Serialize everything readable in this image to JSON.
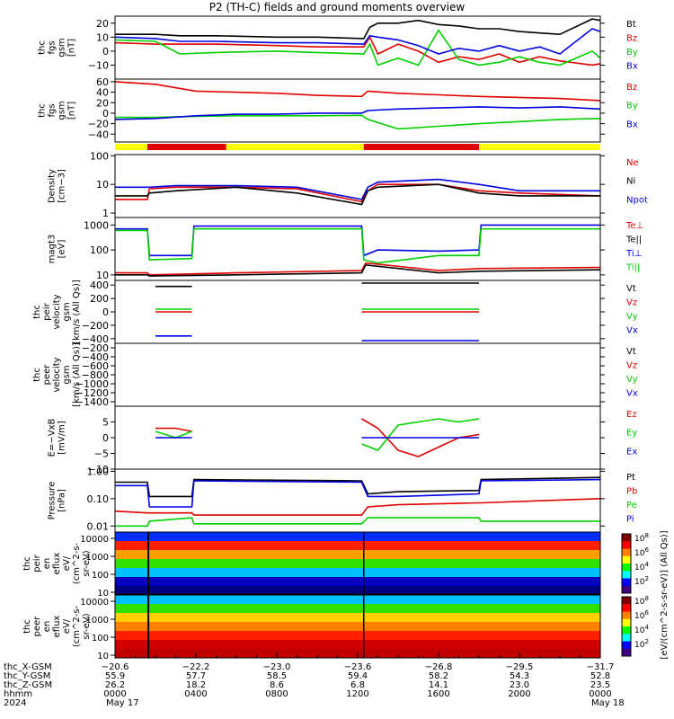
{
  "title": "P2 (TH-C) fields and ground moments overview",
  "colors": {
    "black": "#000000",
    "red": "#e00000",
    "green": "#00d000",
    "blue": "#0000e0",
    "yellow": "#ffff00",
    "bar_red": "#e00000"
  },
  "chart_data": [
    {
      "type": "line",
      "ylabel": [
        "thc",
        "fgs",
        "gsm",
        "[nT]"
      ],
      "yticks": [
        "20",
        "10",
        "0",
        "−10"
      ],
      "ylim": [
        -20,
        25
      ],
      "legend": [
        {
          "name": "Bt",
          "color": "#000000"
        },
        {
          "name": "Bz",
          "color": "#e00000"
        },
        {
          "name": "By",
          "color": "#00d000"
        },
        {
          "name": "Bx",
          "color": "#0000e0"
        }
      ],
      "series": [
        {
          "name": "Bt",
          "x": [
            0,
            2,
            3.2,
            5,
            8,
            10,
            12.3,
            12.6,
            13,
            14,
            15,
            16,
            17,
            18,
            19,
            20,
            21,
            22,
            23.6,
            24
          ],
          "y": [
            12,
            12,
            11,
            11,
            10,
            10,
            9,
            17,
            20,
            20,
            22,
            19,
            18,
            16,
            16,
            14,
            13,
            12,
            23,
            22
          ]
        },
        {
          "name": "Bz",
          "x": [
            0,
            2,
            3.2,
            5,
            8,
            10,
            12.3,
            12.6,
            13,
            14,
            15,
            16,
            17,
            18,
            19,
            20,
            21,
            22,
            23.6,
            24
          ],
          "y": [
            6,
            5,
            5,
            5,
            4,
            3,
            3,
            10,
            -2,
            5,
            0,
            -8,
            -4,
            -6,
            -2,
            -8,
            -4,
            -7,
            -10,
            -9
          ]
        },
        {
          "name": "By",
          "x": [
            0,
            2,
            3.2,
            5,
            8,
            10,
            12.3,
            12.6,
            13,
            14,
            15,
            16,
            17,
            18,
            19,
            20,
            21,
            22,
            23.6,
            24
          ],
          "y": [
            8,
            7,
            -2,
            -1,
            0,
            -1,
            -2,
            5,
            -10,
            -5,
            -10,
            15,
            -6,
            -10,
            -8,
            -4,
            -8,
            -10,
            0,
            -5
          ]
        },
        {
          "name": "Bx",
          "x": [
            0,
            2,
            3.2,
            5,
            8,
            10,
            12.3,
            12.6,
            13,
            14,
            15,
            16,
            17,
            18,
            19,
            20,
            21,
            22,
            23.6,
            24
          ],
          "y": [
            10,
            9,
            7,
            7,
            6,
            6,
            5,
            11,
            10,
            8,
            4,
            -2,
            2,
            0,
            4,
            0,
            3,
            -2,
            16,
            14
          ]
        }
      ]
    },
    {
      "type": "line",
      "ylabel": [
        "thc",
        "fgs",
        "gsm",
        "[nT]"
      ],
      "yticks": [
        "60",
        "40",
        "20",
        "0",
        "−20",
        "−40"
      ],
      "ylim": [
        -55,
        65
      ],
      "legend": [
        {
          "name": "Bz",
          "color": "#e00000"
        },
        {
          "name": "By",
          "color": "#00d000"
        },
        {
          "name": "Bx",
          "color": "#0000e0"
        }
      ],
      "series": [
        {
          "name": "Bz",
          "x": [
            0,
            2,
            4,
            6,
            8,
            10,
            12.2,
            12.5,
            14,
            16,
            18,
            20,
            22,
            24
          ],
          "y": [
            60,
            55,
            42,
            40,
            38,
            34,
            32,
            42,
            38,
            35,
            32,
            30,
            28,
            24
          ]
        },
        {
          "name": "By",
          "x": [
            0,
            2,
            4,
            6,
            8,
            10,
            12.2,
            12.5,
            14,
            16,
            18,
            20,
            22,
            24
          ],
          "y": [
            -8,
            -8,
            -6,
            -5,
            -5,
            -5,
            -4,
            -12,
            -30,
            -25,
            -20,
            -16,
            -12,
            -10
          ]
        },
        {
          "name": "Bx",
          "x": [
            0,
            2,
            4,
            6,
            8,
            10,
            12.2,
            12.5,
            14,
            16,
            18,
            20,
            22,
            24
          ],
          "y": [
            -12,
            -10,
            -5,
            -2,
            -2,
            0,
            0,
            5,
            8,
            10,
            12,
            10,
            12,
            8
          ]
        }
      ]
    },
    {
      "type": "line",
      "ylabel": [
        "Density",
        "[cm−3]"
      ],
      "yscale": "log",
      "yticks": [
        "100",
        "10",
        "1"
      ],
      "ylim": [
        0.7,
        110
      ],
      "legend": [
        {
          "name": "Ne",
          "color": "#e00000"
        },
        {
          "name": "Ni",
          "color": "#000000"
        },
        {
          "name": "Npot",
          "color": "#0000e0"
        }
      ],
      "series": [
        {
          "name": "Ne",
          "x": [
            0,
            1.6,
            1.7,
            3,
            6,
            9,
            12.2,
            12.5,
            13,
            16,
            18,
            20,
            24
          ],
          "y": [
            3,
            3,
            7,
            8,
            8,
            7,
            2.5,
            6,
            10,
            10,
            6,
            5,
            4
          ]
        },
        {
          "name": "Ni",
          "x": [
            0,
            1.6,
            1.7,
            3,
            6,
            9,
            12.2,
            12.5,
            13,
            16,
            18,
            20,
            24
          ],
          "y": [
            4,
            4,
            5,
            6,
            8,
            5,
            2,
            6,
            8,
            10,
            5,
            4,
            4
          ]
        },
        {
          "name": "Npot",
          "x": [
            0,
            1.6,
            1.7,
            3,
            6,
            9,
            12.2,
            12.5,
            13,
            16,
            18,
            20,
            24
          ],
          "y": [
            8,
            8,
            8,
            9,
            9,
            8,
            3,
            8,
            12,
            15,
            10,
            6,
            6
          ]
        }
      ]
    },
    {
      "type": "line",
      "ylabel": [
        "magt3",
        "[eV]"
      ],
      "yscale": "log",
      "yticks": [
        "1000",
        "100",
        "10"
      ],
      "ylim": [
        6,
        2000
      ],
      "legend": [
        {
          "name": "Te⊥",
          "color": "#e00000"
        },
        {
          "name": "Te||",
          "color": "#000000"
        },
        {
          "name": "Ti⊥",
          "color": "#0000e0"
        },
        {
          "name": "Ti||",
          "color": "#00d000"
        }
      ],
      "series": [
        {
          "name": "Ti⊥",
          "x": [
            0,
            1.6,
            1.7,
            3.8,
            3.9,
            12.2,
            12.3,
            13,
            16,
            18,
            18.1,
            24
          ],
          "y": [
            700,
            700,
            60,
            60,
            900,
            900,
            60,
            100,
            90,
            100,
            1000,
            1000
          ]
        },
        {
          "name": "Ti||",
          "x": [
            0,
            1.6,
            1.7,
            3.8,
            3.9,
            12.2,
            12.3,
            13,
            16,
            18,
            18.1,
            24
          ],
          "y": [
            600,
            600,
            40,
            45,
            700,
            700,
            40,
            30,
            60,
            60,
            700,
            700
          ]
        },
        {
          "name": "Te⊥",
          "x": [
            0,
            1.6,
            1.7,
            6,
            12.2,
            12.4,
            16,
            18,
            24
          ],
          "y": [
            12,
            12,
            10,
            12,
            15,
            30,
            15,
            18,
            20
          ]
        },
        {
          "name": "Te||",
          "x": [
            0,
            1.6,
            1.7,
            6,
            12.2,
            12.4,
            16,
            18,
            24
          ],
          "y": [
            10,
            10,
            9,
            10,
            12,
            25,
            12,
            14,
            16
          ]
        }
      ]
    },
    {
      "type": "line",
      "ylabel": [
        "thc",
        "peir",
        "velocity",
        "gsm",
        "[km/s (All Qs)]"
      ],
      "yticks": [
        "400",
        "200",
        "0",
        "−200",
        "−400"
      ],
      "ylim": [
        -470,
        470
      ],
      "legend": [
        {
          "name": "Vt",
          "color": "#000000"
        },
        {
          "name": "Vz",
          "color": "#e00000"
        },
        {
          "name": "Vy",
          "color": "#00d000"
        },
        {
          "name": "Vx",
          "color": "#0000e0"
        }
      ],
      "series": [
        {
          "name": "Vt",
          "x": [
            2,
            3.8
          ],
          "y": [
            380,
            380
          ],
          "x2": [
            12.2,
            18
          ],
          "y2": [
            430,
            430
          ]
        },
        {
          "name": "Vz",
          "x": [
            2,
            3.8
          ],
          "y": [
            0,
            0
          ],
          "x2": [
            12.2,
            18
          ],
          "y2": [
            0,
            0
          ]
        },
        {
          "name": "Vy",
          "x": [
            2,
            3.8
          ],
          "y": [
            40,
            40
          ],
          "x2": [
            12.2,
            18
          ],
          "y2": [
            40,
            40
          ]
        },
        {
          "name": "Vx",
          "x": [
            2,
            3.8
          ],
          "y": [
            -360,
            -360
          ],
          "x2": [
            12.2,
            18
          ],
          "y2": [
            -430,
            -430
          ]
        }
      ]
    },
    {
      "type": "line",
      "ylabel": [
        "thc",
        "peer",
        "velocity",
        "gsm",
        "[km/s (All Qs)]"
      ],
      "yticks": [
        "−200",
        "−400",
        "−600",
        "−800",
        "−1000",
        "−1200",
        "−1400"
      ],
      "ylim": [
        -1500,
        -100
      ],
      "legend": [
        {
          "name": "Vt",
          "color": "#000000"
        },
        {
          "name": "Vz",
          "color": "#e00000"
        },
        {
          "name": "Vy",
          "color": "#00d000"
        },
        {
          "name": "Vx",
          "color": "#0000e0"
        }
      ],
      "series": []
    },
    {
      "type": "line",
      "ylabel": [
        "E=−VxB",
        "[mV/m]"
      ],
      "yticks": [
        "5",
        "0",
        "−5",
        "−10"
      ],
      "ylim": [
        -10,
        10
      ],
      "legend": [
        {
          "name": "Ez",
          "color": "#e00000"
        },
        {
          "name": "Ey",
          "color": "#00d000"
        },
        {
          "name": "Ex",
          "color": "#0000e0"
        }
      ],
      "series": [
        {
          "name": "Ez",
          "x": [
            2,
            3,
            3.8
          ],
          "y": [
            3,
            3,
            2
          ],
          "x2": [
            12.2,
            13,
            14,
            15,
            16,
            17,
            18
          ],
          "y2": [
            6,
            3,
            -4,
            -6,
            -3,
            0,
            1
          ]
        },
        {
          "name": "Ey",
          "x": [
            2,
            3,
            3.8
          ],
          "y": [
            2,
            0,
            2
          ],
          "x2": [
            12.2,
            13,
            14,
            15,
            16,
            17,
            18
          ],
          "y2": [
            -2,
            -4,
            4,
            5,
            6,
            5,
            6
          ]
        },
        {
          "name": "Ex",
          "x": [
            2,
            3,
            3.8
          ],
          "y": [
            0,
            0,
            0
          ],
          "x2": [
            12.2,
            13,
            14,
            15,
            16,
            17,
            18
          ],
          "y2": [
            0,
            0,
            0,
            0,
            0,
            0,
            0
          ]
        }
      ]
    },
    {
      "type": "line",
      "ylabel": [
        "Pressure",
        "[nPa]"
      ],
      "yscale": "log",
      "yticks": [
        "1.00",
        "0.10",
        "0.01"
      ],
      "ylim": [
        0.006,
        1.2
      ],
      "legend": [
        {
          "name": "Pt",
          "color": "#000000"
        },
        {
          "name": "Pb",
          "color": "#e00000"
        },
        {
          "name": "Pe",
          "color": "#00d000"
        },
        {
          "name": "Pi",
          "color": "#0000e0"
        }
      ],
      "series": [
        {
          "name": "Pt",
          "x": [
            0,
            1.6,
            1.7,
            3.8,
            3.9,
            12.2,
            12.5,
            14,
            18,
            18.1,
            24
          ],
          "y": [
            0.4,
            0.4,
            0.12,
            0.12,
            0.5,
            0.45,
            0.15,
            0.18,
            0.2,
            0.5,
            0.6
          ]
        },
        {
          "name": "Pb",
          "x": [
            0,
            1.6,
            1.7,
            3.8,
            3.9,
            12.2,
            12.5,
            14,
            18,
            18.1,
            24
          ],
          "y": [
            0.035,
            0.03,
            0.03,
            0.03,
            0.025,
            0.025,
            0.05,
            0.06,
            0.07,
            0.07,
            0.1
          ]
        },
        {
          "name": "Pe",
          "x": [
            0,
            1.6,
            1.7,
            3.8,
            3.9,
            12.2,
            12.5,
            14,
            18,
            18.1,
            24
          ],
          "y": [
            0.01,
            0.01,
            0.015,
            0.02,
            0.012,
            0.012,
            0.02,
            0.02,
            0.02,
            0.015,
            0.015
          ]
        },
        {
          "name": "Pi",
          "x": [
            0,
            1.6,
            1.7,
            3.8,
            3.9,
            12.2,
            12.5,
            14,
            18,
            18.1,
            24
          ],
          "y": [
            0.3,
            0.3,
            0.05,
            0.05,
            0.45,
            0.4,
            0.12,
            0.12,
            0.15,
            0.45,
            0.5
          ]
        }
      ]
    },
    {
      "type": "heatmap",
      "ylabel": [
        "thc",
        "peir",
        "en",
        "eflux",
        "eV/",
        "(cm^2-s-",
        "sr-eV)"
      ],
      "yscale": "log",
      "yticks": [
        "10000",
        "1000",
        "100",
        "10"
      ]
    },
    {
      "type": "heatmap",
      "ylabel": [
        "thc",
        "peer",
        "en",
        "eflux",
        "eV/",
        "(cm^2-s-",
        "sr-eV)"
      ],
      "yscale": "log",
      "yticks": [
        "10000",
        "1000",
        "100",
        "10"
      ]
    }
  ],
  "colorbar": {
    "tick_labels": [
      "10^8",
      "10^6",
      "10^4",
      "10^2",
      "10^8",
      "10^6",
      "10^4",
      "10^2"
    ],
    "unit_label": "[eV/(cm^2-s-sr-eV)] (All Qs)]"
  },
  "x_axis": {
    "row_labels": [
      "thc_X-GSM",
      "thc_Y-GSM",
      "thc_Z-GSM",
      "hhmm",
      "2024"
    ],
    "columns": [
      [
        "−20.6",
        "55.9",
        "26.2",
        "0000",
        "May 17"
      ],
      [
        "−22.2",
        "57.7",
        "18.2",
        "0400",
        ""
      ],
      [
        "−23.0",
        "58.5",
        "8.6",
        "0800",
        ""
      ],
      [
        "−23.6",
        "59.4",
        "6.8",
        "1200",
        ""
      ],
      [
        "−26.8",
        "58.2",
        "14.1",
        "1600",
        ""
      ],
      [
        "−29.5",
        "54.3",
        "23.0",
        "2000",
        ""
      ],
      [
        "−31.7",
        "52.8",
        "23.5",
        "0000",
        "May 18"
      ]
    ]
  },
  "mode_bar": [
    {
      "start": 0,
      "end": 1.6,
      "color": "#ffff00"
    },
    {
      "start": 1.6,
      "end": 5.5,
      "color": "#e00000"
    },
    {
      "start": 5.5,
      "end": 12.3,
      "color": "#ffff00"
    },
    {
      "start": 12.3,
      "end": 18.0,
      "color": "#e00000"
    },
    {
      "start": 18.0,
      "end": 24,
      "color": "#ffff00"
    }
  ]
}
